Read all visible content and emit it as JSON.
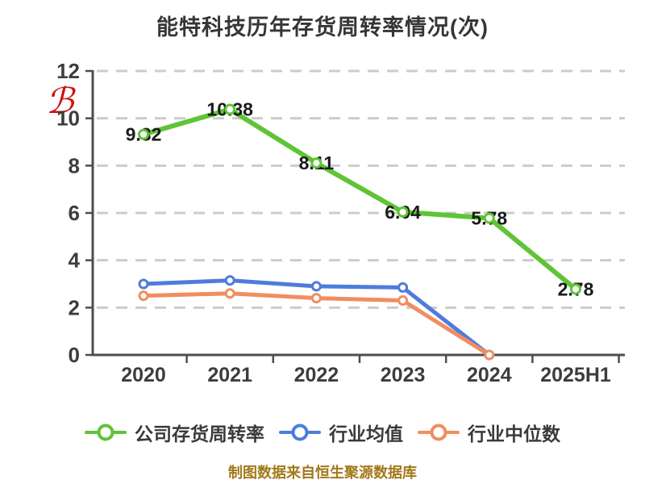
{
  "title": "能特科技历年存货周转率情况(次)",
  "watermark_glyph": "ℬ",
  "footer": "制图数据来自恒生聚源数据库",
  "colors": {
    "company_green": "#5fc436",
    "industry_avg_blue": "#4e7cdc",
    "industry_median_orange": "#f18d60",
    "grid": "#cccccc",
    "axis": "#4d4d4d",
    "tick_label": "#3d3d3d",
    "data_label": "#1a1a1a",
    "title_text": "#363636",
    "footer_text": "#a1791b",
    "watermark_red": "#cc1111"
  },
  "chart_data": {
    "type": "line",
    "title": "能特科技历年存货周转率情况(次)",
    "categories": [
      "2020",
      "2021",
      "2022",
      "2023",
      "2024",
      "2025H1"
    ],
    "series": [
      {
        "name": "公司存货周转率",
        "color": "#5fc436",
        "show_labels": true,
        "values": [
          9.32,
          10.38,
          8.11,
          6.04,
          5.78,
          2.78
        ]
      },
      {
        "name": "行业均值",
        "color": "#4e7cdc",
        "show_labels": false,
        "values": [
          3.0,
          3.15,
          2.9,
          2.85,
          0,
          null
        ]
      },
      {
        "name": "行业中位数",
        "color": "#f18d60",
        "show_labels": false,
        "values": [
          2.5,
          2.6,
          2.4,
          2.3,
          0,
          null
        ]
      }
    ],
    "xlabel": "",
    "ylabel": "",
    "ylim": [
      0,
      12
    ],
    "yticks": [
      0,
      2,
      4,
      6,
      8,
      10,
      12
    ],
    "grid": "horizontal-dashed",
    "legend_position": "bottom"
  }
}
